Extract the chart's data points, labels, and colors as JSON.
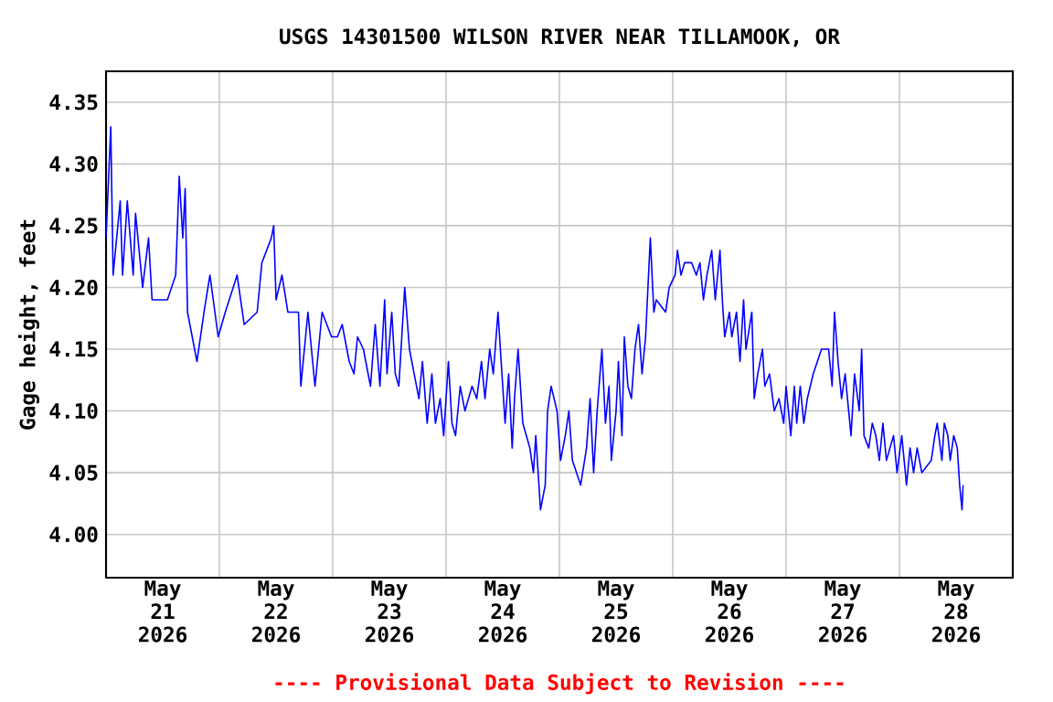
{
  "chart_data": {
    "type": "line",
    "title": "USGS 14301500 WILSON RIVER NEAR TILLAMOOK, OR",
    "ylabel": "Gage height, feet",
    "annotations": [
      "---- Provisional Data Subject to Revision ----"
    ],
    "grid": true,
    "xlim": [
      "2026-05-21T00:00",
      "2026-05-29T00:00"
    ],
    "xticks": [
      {
        "value": "2026-05-21T12:00",
        "label": "May 21 2026"
      },
      {
        "value": "2026-05-22T00:00",
        "label": null
      },
      {
        "value": "2026-05-22T12:00",
        "label": "May 22 2026"
      },
      {
        "value": "2026-05-23T00:00",
        "label": null
      },
      {
        "value": "2026-05-23T12:00",
        "label": "May 23 2026"
      },
      {
        "value": "2026-05-24T00:00",
        "label": null
      },
      {
        "value": "2026-05-24T12:00",
        "label": "May 24 2026"
      },
      {
        "value": "2026-05-25T00:00",
        "label": null
      },
      {
        "value": "2026-05-25T12:00",
        "label": "May 25 2026"
      },
      {
        "value": "2026-05-26T00:00",
        "label": null
      },
      {
        "value": "2026-05-26T12:00",
        "label": "May 26 2026"
      },
      {
        "value": "2026-05-27T00:00",
        "label": null
      },
      {
        "value": "2026-05-27T12:00",
        "label": "May 27 2026"
      },
      {
        "value": "2026-05-28T00:00",
        "label": null
      },
      {
        "value": "2026-05-28T12:00",
        "label": "May 28 2026"
      }
    ],
    "ylim": [
      3.965,
      4.375
    ],
    "yticks": [
      {
        "value": 4.0,
        "label": "4.00"
      },
      4.05,
      {
        "value": 4.1,
        "label": "4.10"
      },
      4.15,
      {
        "value": 4.2,
        "label": "4.20"
      },
      4.25,
      {
        "value": 4.3,
        "label": "4.30"
      },
      4.35
    ],
    "series": [
      {
        "color": "#0000ff",
        "x": [
          "2026-05-21T00:00",
          "2026-05-21T01:00",
          "2026-05-21T01:30",
          "2026-05-21T03:00",
          "2026-05-21T03:30",
          "2026-05-21T04:30",
          "2026-05-21T05:45",
          "2026-05-21T06:15",
          "2026-05-21T07:45",
          "2026-05-21T09:00",
          "2026-05-21T09:45",
          "2026-05-21T11:30",
          "2026-05-21T13:00",
          "2026-05-21T14:45",
          "2026-05-21T15:30",
          "2026-05-21T16:15",
          "2026-05-21T16:45",
          "2026-05-21T17:15",
          "2026-05-21T19:15",
          "2026-05-21T20:45",
          "2026-05-21T22:00",
          "2026-05-21T23:45",
          "2026-05-22T01:15",
          "2026-05-22T03:45",
          "2026-05-22T05:15",
          "2026-05-22T08:00",
          "2026-05-22T09:00",
          "2026-05-22T11:00",
          "2026-05-22T11:30",
          "2026-05-22T12:00",
          "2026-05-22T13:15",
          "2026-05-22T14:30",
          "2026-05-22T16:45",
          "2026-05-22T17:15",
          "2026-05-22T18:45",
          "2026-05-22T20:15",
          "2026-05-22T21:45",
          "2026-05-22T23:45",
          "2026-05-23T01:00",
          "2026-05-23T02:00",
          "2026-05-23T03:30",
          "2026-05-23T04:30",
          "2026-05-23T05:15",
          "2026-05-23T06:30",
          "2026-05-23T08:00",
          "2026-05-23T09:00",
          "2026-05-23T10:00",
          "2026-05-23T11:00",
          "2026-05-23T11:30",
          "2026-05-23T12:30",
          "2026-05-23T13:15",
          "2026-05-23T14:00",
          "2026-05-23T15:15",
          "2026-05-23T16:15",
          "2026-05-23T17:15",
          "2026-05-23T18:15",
          "2026-05-23T19:00",
          "2026-05-23T20:00",
          "2026-05-23T21:00",
          "2026-05-23T21:45",
          "2026-05-23T22:45",
          "2026-05-23T23:30",
          "2026-05-24T00:30",
          "2026-05-24T01:15",
          "2026-05-24T02:00",
          "2026-05-24T03:00",
          "2026-05-24T04:00",
          "2026-05-24T05:30",
          "2026-05-24T06:30",
          "2026-05-24T07:30",
          "2026-05-24T08:15",
          "2026-05-24T09:15",
          "2026-05-24T10:00",
          "2026-05-24T11:00",
          "2026-05-24T12:00",
          "2026-05-24T12:30",
          "2026-05-24T13:15",
          "2026-05-24T14:00",
          "2026-05-24T14:30",
          "2026-05-24T15:15",
          "2026-05-24T16:15",
          "2026-05-24T17:45",
          "2026-05-24T18:30",
          "2026-05-24T19:00",
          "2026-05-24T20:00",
          "2026-05-24T21:00",
          "2026-05-24T21:30",
          "2026-05-24T22:15",
          "2026-05-24T23:30",
          "2026-05-25T00:15",
          "2026-05-25T01:15",
          "2026-05-25T02:00",
          "2026-05-25T02:45",
          "2026-05-25T04:30",
          "2026-05-25T05:45",
          "2026-05-25T06:30",
          "2026-05-25T07:15",
          "2026-05-25T08:00",
          "2026-05-25T09:00",
          "2026-05-25T09:45",
          "2026-05-25T10:30",
          "2026-05-25T11:00",
          "2026-05-25T12:00",
          "2026-05-25T12:30",
          "2026-05-25T13:15",
          "2026-05-25T13:45",
          "2026-05-25T14:30",
          "2026-05-25T15:15",
          "2026-05-25T16:00",
          "2026-05-25T16:45",
          "2026-05-25T17:30",
          "2026-05-25T18:15",
          "2026-05-25T18:45",
          "2026-05-25T19:15",
          "2026-05-25T20:00",
          "2026-05-25T20:30",
          "2026-05-25T22:30",
          "2026-05-25T23:15",
          "2026-05-26T00:30",
          "2026-05-26T01:00",
          "2026-05-26T01:45",
          "2026-05-26T02:30",
          "2026-05-26T04:00",
          "2026-05-26T05:00",
          "2026-05-26T05:45",
          "2026-05-26T06:30",
          "2026-05-26T07:15",
          "2026-05-26T08:15",
          "2026-05-26T09:00",
          "2026-05-26T10:00",
          "2026-05-26T10:30",
          "2026-05-26T11:00",
          "2026-05-26T12:00",
          "2026-05-26T12:30",
          "2026-05-26T13:30",
          "2026-05-26T14:15",
          "2026-05-26T15:00",
          "2026-05-26T15:30",
          "2026-05-26T16:45",
          "2026-05-26T17:15",
          "2026-05-26T18:00",
          "2026-05-26T19:00",
          "2026-05-26T19:30",
          "2026-05-26T20:30",
          "2026-05-26T21:30",
          "2026-05-26T22:30",
          "2026-05-26T23:30",
          "2026-05-27T00:00",
          "2026-05-27T01:00",
          "2026-05-27T01:45",
          "2026-05-27T02:15",
          "2026-05-27T03:00",
          "2026-05-27T03:45",
          "2026-05-27T04:30",
          "2026-05-27T05:45",
          "2026-05-27T07:30",
          "2026-05-27T09:00",
          "2026-05-27T09:45",
          "2026-05-27T10:15",
          "2026-05-27T11:00",
          "2026-05-27T11:45",
          "2026-05-27T12:30",
          "2026-05-27T13:15",
          "2026-05-27T13:45",
          "2026-05-27T14:30",
          "2026-05-27T15:30",
          "2026-05-27T16:00",
          "2026-05-27T16:30",
          "2026-05-27T17:30",
          "2026-05-27T18:15",
          "2026-05-27T19:00",
          "2026-05-27T19:45",
          "2026-05-27T20:30",
          "2026-05-27T21:15",
          "2026-05-27T22:45",
          "2026-05-27T23:30",
          "2026-05-28T00:30",
          "2026-05-28T01:30",
          "2026-05-28T02:15",
          "2026-05-28T03:00",
          "2026-05-28T03:45",
          "2026-05-28T04:45",
          "2026-05-28T06:45",
          "2026-05-28T07:30",
          "2026-05-28T08:00",
          "2026-05-28T09:00",
          "2026-05-28T09:30",
          "2026-05-28T10:15",
          "2026-05-28T10:45",
          "2026-05-28T11:30",
          "2026-05-28T12:15",
          "2026-05-28T12:45",
          "2026-05-28T13:15",
          "2026-05-28T13:30"
        ],
        "values": [
          4.24,
          4.33,
          4.21,
          4.27,
          4.21,
          4.27,
          4.21,
          4.26,
          4.2,
          4.24,
          4.19,
          4.19,
          4.19,
          4.21,
          4.29,
          4.24,
          4.28,
          4.18,
          4.14,
          4.18,
          4.21,
          4.16,
          4.18,
          4.21,
          4.17,
          4.18,
          4.22,
          4.24,
          4.25,
          4.19,
          4.21,
          4.18,
          4.18,
          4.12,
          4.18,
          4.12,
          4.18,
          4.16,
          4.16,
          4.17,
          4.14,
          4.13,
          4.16,
          4.15,
          4.12,
          4.17,
          4.12,
          4.19,
          4.13,
          4.18,
          4.13,
          4.12,
          4.2,
          4.15,
          4.13,
          4.11,
          4.14,
          4.09,
          4.13,
          4.09,
          4.11,
          4.08,
          4.14,
          4.09,
          4.08,
          4.12,
          4.1,
          4.12,
          4.11,
          4.14,
          4.11,
          4.15,
          4.13,
          4.18,
          4.12,
          4.09,
          4.13,
          4.07,
          4.11,
          4.15,
          4.09,
          4.07,
          4.05,
          4.08,
          4.02,
          4.04,
          4.1,
          4.12,
          4.1,
          4.06,
          4.08,
          4.1,
          4.06,
          4.04,
          4.07,
          4.11,
          4.05,
          4.1,
          4.15,
          4.09,
          4.12,
          4.06,
          4.1,
          4.14,
          4.08,
          4.16,
          4.12,
          4.11,
          4.15,
          4.17,
          4.13,
          4.16,
          4.2,
          4.24,
          4.18,
          4.19,
          4.18,
          4.2,
          4.21,
          4.23,
          4.21,
          4.22,
          4.22,
          4.21,
          4.22,
          4.19,
          4.21,
          4.23,
          4.19,
          4.23,
          4.19,
          4.16,
          4.18,
          4.16,
          4.18,
          4.14,
          4.19,
          4.15,
          4.18,
          4.11,
          4.13,
          4.15,
          4.12,
          4.13,
          4.1,
          4.11,
          4.09,
          4.12,
          4.08,
          4.12,
          4.09,
          4.12,
          4.09,
          4.11,
          4.13,
          4.15,
          4.15,
          4.12,
          4.18,
          4.14,
          4.11,
          4.13,
          4.1,
          4.08,
          4.13,
          4.1,
          4.15,
          4.08,
          4.07,
          4.09,
          4.08,
          4.06,
          4.09,
          4.06,
          4.08,
          4.05,
          4.08,
          4.04,
          4.07,
          4.05,
          4.07,
          4.05,
          4.06,
          4.08,
          4.09,
          4.06,
          4.09,
          4.08,
          4.06,
          4.08,
          4.07,
          4.04,
          4.02,
          4.04
        ]
      }
    ]
  }
}
